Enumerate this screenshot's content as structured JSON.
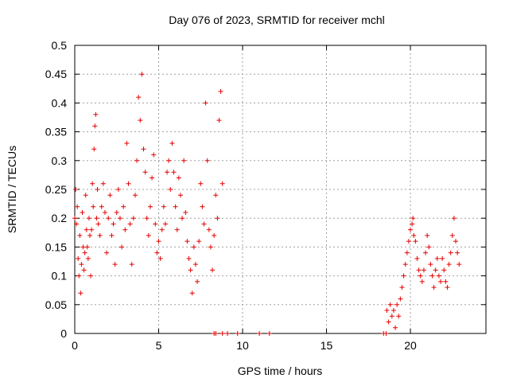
{
  "chart_data": {
    "type": "scatter",
    "title": "Day 076 of 2023, SRMTID for receiver mchl",
    "xlabel": "GPS time / hours",
    "ylabel": "SRMTID / TECUs",
    "xlim": [
      0,
      24.5
    ],
    "ylim": [
      0,
      0.5
    ],
    "xticks": [
      0,
      5,
      10,
      15,
      20
    ],
    "xtick_labels": [
      "0",
      "5",
      "10",
      "15",
      "20"
    ],
    "yticks": [
      0,
      0.05,
      0.1,
      0.15,
      0.2,
      0.25,
      0.3,
      0.35,
      0.4,
      0.45,
      0.5
    ],
    "ytick_labels": [
      "0",
      "0.05",
      "0.1",
      "0.15",
      "0.2",
      "0.25",
      "0.3",
      "0.35",
      "0.4",
      "0.45",
      "0.5"
    ],
    "grid": true,
    "marker": "+",
    "color": "#e60000",
    "series": [
      {
        "name": "SRMTID",
        "points": [
          [
            0.0,
            0.2
          ],
          [
            0.05,
            0.25
          ],
          [
            0.1,
            0.19
          ],
          [
            0.15,
            0.22
          ],
          [
            0.2,
            0.13
          ],
          [
            0.25,
            0.1
          ],
          [
            0.3,
            0.17
          ],
          [
            0.35,
            0.07
          ],
          [
            0.4,
            0.12
          ],
          [
            0.45,
            0.21
          ],
          [
            0.5,
            0.15
          ],
          [
            0.55,
            0.11
          ],
          [
            0.6,
            0.14
          ],
          [
            0.65,
            0.24
          ],
          [
            0.7,
            0.18
          ],
          [
            0.75,
            0.15
          ],
          [
            0.8,
            0.13
          ],
          [
            0.85,
            0.2
          ],
          [
            0.9,
            0.17
          ],
          [
            0.95,
            0.1
          ],
          [
            1.0,
            0.18
          ],
          [
            1.05,
            0.26
          ],
          [
            1.1,
            0.22
          ],
          [
            1.15,
            0.32
          ],
          [
            1.2,
            0.36
          ],
          [
            1.25,
            0.38
          ],
          [
            1.3,
            0.2
          ],
          [
            1.35,
            0.25
          ],
          [
            1.4,
            0.19
          ],
          [
            1.5,
            0.17
          ],
          [
            1.6,
            0.22
          ],
          [
            1.7,
            0.26
          ],
          [
            1.8,
            0.21
          ],
          [
            1.9,
            0.14
          ],
          [
            2.0,
            0.2
          ],
          [
            2.1,
            0.24
          ],
          [
            2.2,
            0.17
          ],
          [
            2.3,
            0.19
          ],
          [
            2.4,
            0.12
          ],
          [
            2.5,
            0.21
          ],
          [
            2.6,
            0.25
          ],
          [
            2.7,
            0.2
          ],
          [
            2.8,
            0.15
          ],
          [
            2.9,
            0.22
          ],
          [
            3.0,
            0.18
          ],
          [
            3.1,
            0.33
          ],
          [
            3.2,
            0.26
          ],
          [
            3.3,
            0.19
          ],
          [
            3.4,
            0.12
          ],
          [
            3.5,
            0.2
          ],
          [
            3.6,
            0.24
          ],
          [
            3.7,
            0.3
          ],
          [
            3.8,
            0.41
          ],
          [
            3.9,
            0.37
          ],
          [
            4.0,
            0.45
          ],
          [
            4.1,
            0.32
          ],
          [
            4.2,
            0.28
          ],
          [
            4.3,
            0.2
          ],
          [
            4.4,
            0.17
          ],
          [
            4.5,
            0.22
          ],
          [
            4.6,
            0.27
          ],
          [
            4.7,
            0.31
          ],
          [
            4.8,
            0.19
          ],
          [
            4.9,
            0.14
          ],
          [
            5.0,
            0.16
          ],
          [
            5.1,
            0.13
          ],
          [
            5.2,
            0.18
          ],
          [
            5.3,
            0.22
          ],
          [
            5.4,
            0.19
          ],
          [
            5.5,
            0.28
          ],
          [
            5.6,
            0.3
          ],
          [
            5.7,
            0.25
          ],
          [
            5.8,
            0.33
          ],
          [
            5.9,
            0.28
          ],
          [
            6.0,
            0.22
          ],
          [
            6.1,
            0.18
          ],
          [
            6.2,
            0.27
          ],
          [
            6.3,
            0.24
          ],
          [
            6.4,
            0.2
          ],
          [
            6.5,
            0.3
          ],
          [
            6.6,
            0.21
          ],
          [
            6.7,
            0.16
          ],
          [
            6.8,
            0.13
          ],
          [
            6.9,
            0.11
          ],
          [
            7.0,
            0.07
          ],
          [
            7.1,
            0.15
          ],
          [
            7.2,
            0.12
          ],
          [
            7.3,
            0.09
          ],
          [
            7.4,
            0.16
          ],
          [
            7.5,
            0.26
          ],
          [
            7.6,
            0.22
          ],
          [
            7.7,
            0.19
          ],
          [
            7.8,
            0.4
          ],
          [
            7.9,
            0.3
          ],
          [
            8.0,
            0.18
          ],
          [
            8.1,
            0.15
          ],
          [
            8.2,
            0.11
          ],
          [
            8.3,
            0.17
          ],
          [
            8.4,
            0.24
          ],
          [
            8.5,
            0.2
          ],
          [
            8.6,
            0.37
          ],
          [
            8.7,
            0.42
          ],
          [
            8.8,
            0.26
          ],
          [
            8.3,
            0.0
          ],
          [
            8.4,
            0.0
          ],
          [
            8.8,
            0.0
          ],
          [
            9.1,
            0.0
          ],
          [
            9.7,
            0.0
          ],
          [
            11.0,
            0.0
          ],
          [
            11.6,
            0.0
          ],
          [
            18.4,
            0.0
          ],
          [
            18.55,
            0.0
          ],
          [
            18.6,
            0.04
          ],
          [
            18.7,
            0.02
          ],
          [
            18.8,
            0.05
          ],
          [
            18.9,
            0.03
          ],
          [
            19.0,
            0.04
          ],
          [
            19.1,
            0.01
          ],
          [
            19.2,
            0.05
          ],
          [
            19.3,
            0.03
          ],
          [
            19.4,
            0.06
          ],
          [
            19.5,
            0.08
          ],
          [
            19.6,
            0.1
          ],
          [
            19.7,
            0.12
          ],
          [
            19.8,
            0.14
          ],
          [
            19.9,
            0.16
          ],
          [
            20.0,
            0.18
          ],
          [
            20.1,
            0.19
          ],
          [
            20.15,
            0.2
          ],
          [
            20.2,
            0.17
          ],
          [
            20.3,
            0.16
          ],
          [
            20.4,
            0.13
          ],
          [
            20.5,
            0.11
          ],
          [
            20.6,
            0.1
          ],
          [
            20.7,
            0.09
          ],
          [
            20.8,
            0.11
          ],
          [
            20.9,
            0.14
          ],
          [
            21.0,
            0.17
          ],
          [
            21.1,
            0.15
          ],
          [
            21.2,
            0.12
          ],
          [
            21.3,
            0.1
          ],
          [
            21.4,
            0.08
          ],
          [
            21.5,
            0.11
          ],
          [
            21.6,
            0.13
          ],
          [
            21.7,
            0.1
          ],
          [
            21.8,
            0.09
          ],
          [
            21.9,
            0.13
          ],
          [
            22.0,
            0.11
          ],
          [
            22.1,
            0.09
          ],
          [
            22.2,
            0.08
          ],
          [
            22.3,
            0.12
          ],
          [
            22.4,
            0.14
          ],
          [
            22.5,
            0.17
          ],
          [
            22.6,
            0.2
          ],
          [
            22.7,
            0.16
          ],
          [
            22.8,
            0.14
          ],
          [
            22.9,
            0.12
          ]
        ]
      }
    ]
  }
}
